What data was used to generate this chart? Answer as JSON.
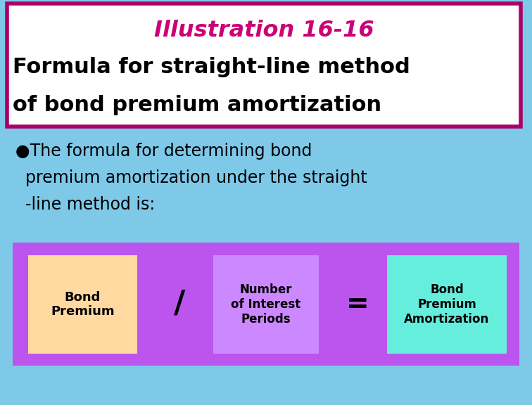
{
  "bg_color": "#7ec8e8",
  "title_box_bg": "#ffffff",
  "title_box_border": "#aa0066",
  "title_line1": "Illustration 16-16",
  "title_line1_color": "#cc0077",
  "title_line2": "Formula for straight-line method",
  "title_line3": "of bond premium amortization",
  "title_text_color": "#000000",
  "bullet_line1": "●The formula for determining bond",
  "bullet_line2": "  premium amortization under the straight",
  "bullet_line3": "  -line method is:",
  "formula_box_bg": "#bb55ee",
  "box1_bg": "#ffd9a0",
  "box1_text": "Bond\nPremium",
  "slash_text": "/",
  "box3_bg": "#cc88ff",
  "box3_text": "Number\nof Interest\nPeriods",
  "equals_text": "=",
  "box5_bg": "#66eedd",
  "box5_text": "Bond\nPremium\nAmortization",
  "fig_w": 7.56,
  "fig_h": 5.76,
  "dpi": 100
}
